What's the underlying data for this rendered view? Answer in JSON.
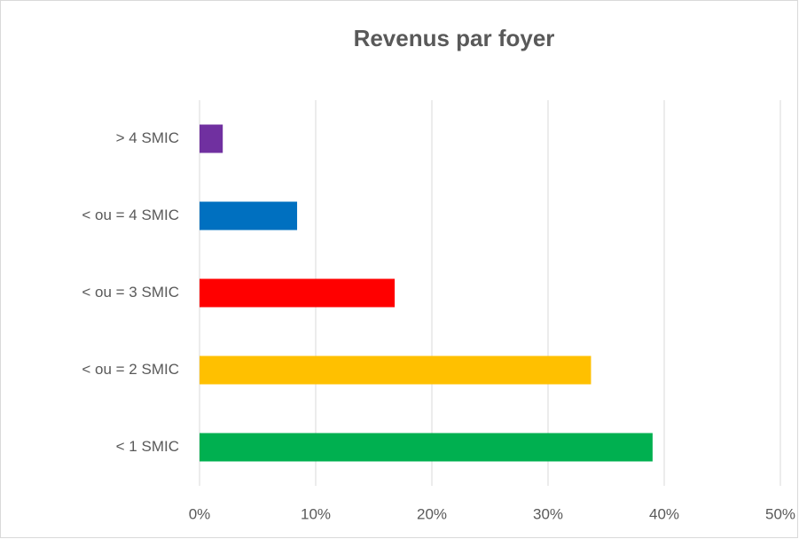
{
  "chart_data": {
    "type": "bar",
    "orientation": "horizontal",
    "title": "Revenus par foyer",
    "categories": [
      "> 4 SMIC",
      "< ou = 4 SMIC",
      "< ou = 3 SMIC",
      "< ou = 2 SMIC",
      "< 1 SMIC"
    ],
    "values": [
      2,
      8.4,
      16.8,
      33.7,
      39
    ],
    "colors": [
      "#7030a0",
      "#0070c0",
      "#ff0000",
      "#ffc000",
      "#00b050"
    ],
    "xlim": [
      0,
      50
    ],
    "xticks": [
      {
        "value": 0,
        "label": "0%"
      },
      {
        "value": 10,
        "label": "10%"
      },
      {
        "value": 20,
        "label": "20%"
      },
      {
        "value": 30,
        "label": "30%"
      },
      {
        "value": 40,
        "label": "40%"
      },
      {
        "value": 50,
        "label": "50%"
      }
    ],
    "grid": true
  }
}
